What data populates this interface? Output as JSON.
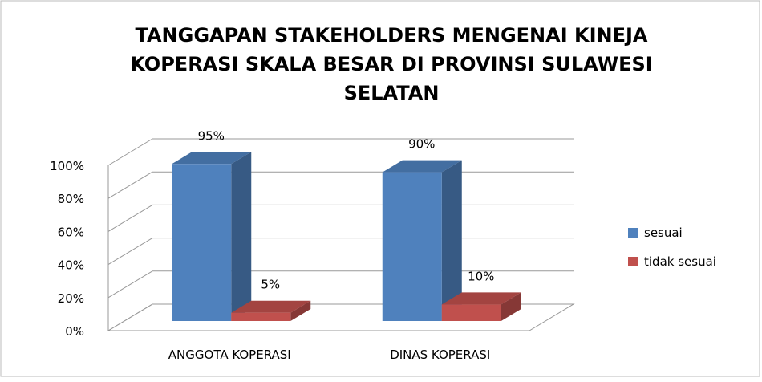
{
  "chart_data": {
    "type": "bar3d",
    "title": [
      "TANGGAPAN STAKEHOLDERS MENGENAI KINEJA",
      "KOPERASI SKALA BESAR  DI PROVINSI SULAWESI",
      "SELATAN"
    ],
    "categories": [
      "ANGGOTA KOPERASI",
      "DINAS KOPERASI"
    ],
    "series": [
      {
        "name": "sesuai",
        "color": "#4f81bd",
        "values": [
          95,
          90
        ],
        "value_labels": [
          "95%",
          "90%"
        ]
      },
      {
        "name": "tidak sesuai",
        "color": "#c0504d",
        "values": [
          5,
          10
        ],
        "value_labels": [
          "5%",
          "10%"
        ]
      }
    ],
    "ylim": [
      0,
      100
    ],
    "yticks": [
      {
        "value": 0,
        "label": "0%"
      },
      {
        "value": 20,
        "label": "20%"
      },
      {
        "value": 40,
        "label": "40%"
      },
      {
        "value": 60,
        "label": "60%"
      },
      {
        "value": 80,
        "label": "80%"
      },
      {
        "value": 100,
        "label": "100%"
      }
    ],
    "grid": true,
    "legend": "right"
  }
}
